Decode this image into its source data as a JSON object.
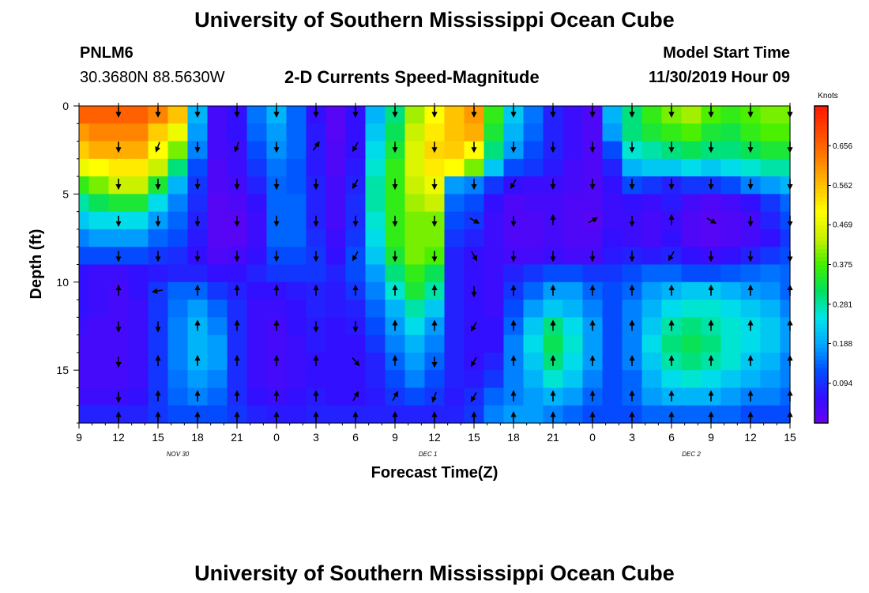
{
  "header": {
    "top_title": "University of Southern Mississippi Ocean Cube",
    "station_id": "PNLM6",
    "station_coords": "30.3680N 88.5630W",
    "plot_title": "2-D Currents Speed-Magnitude",
    "model_label": "Model Start Time",
    "model_time": "11/30/2019 Hour 09",
    "bottom_title": "University of Southern Mississippi Ocean Cube"
  },
  "colors": {
    "colormap": [
      "#6a00f0",
      "#3010ff",
      "#0050ff",
      "#00a8ff",
      "#00e6e6",
      "#00e060",
      "#40f000",
      "#c8f000",
      "#ffff00",
      "#ffc000",
      "#ff8000",
      "#ff4800",
      "#ff1800"
    ]
  },
  "chart_data": {
    "type": "heatmap",
    "title": "2-D Currents Speed-Magnitude",
    "xlabel": "Forecast Time(Z)",
    "ylabel": "Depth (ft)",
    "x_ticks": [
      "9",
      "12",
      "15",
      "18",
      "21",
      "0",
      "3",
      "6",
      "9",
      "12",
      "15",
      "18",
      "21",
      "0",
      "3",
      "6",
      "9",
      "12",
      "15"
    ],
    "x_hours": [
      0,
      3,
      6,
      9,
      12,
      15,
      18,
      21,
      24,
      27,
      30,
      33,
      36,
      39,
      42,
      45,
      48,
      51,
      54
    ],
    "x_range_hours": [
      0,
      54
    ],
    "date_labels": [
      {
        "text": "NOV 30",
        "hour": 7.5
      },
      {
        "text": "DEC 1",
        "hour": 26.5
      },
      {
        "text": "DEC 2",
        "hour": 46.5
      }
    ],
    "y_ticks": [
      0,
      5,
      10,
      15
    ],
    "ylim": [
      0,
      18
    ],
    "y_inverted": true,
    "colorbar": {
      "label": "Knots",
      "ticks": [
        "0.094",
        "0.188",
        "0.281",
        "0.375",
        "0.469",
        "0.562",
        "0.656"
      ],
      "range": [
        0,
        0.75
      ]
    },
    "depths_ft": [
      0.5,
      1.5,
      2.5,
      3.5,
      4.5,
      5.5,
      6.5,
      7.5,
      8.5,
      9.5,
      10.5,
      11.5,
      12.5,
      13.5,
      14.5,
      15.5,
      16.5,
      17.5
    ],
    "times_hr": [
      0,
      1.5,
      3,
      4.5,
      6,
      7.5,
      9,
      10.5,
      12,
      13.5,
      15,
      16.5,
      18,
      19.5,
      21,
      22.5,
      24,
      25.5,
      27,
      28.5,
      30,
      31.5,
      33,
      34.5,
      36,
      37.5,
      39,
      40.5,
      42,
      43.5,
      45,
      46.5,
      48,
      49.5,
      51,
      52.5,
      54
    ],
    "speed_knots": [
      [
        0.66,
        0.66,
        0.66,
        0.66,
        0.62,
        0.56,
        0.2,
        0.04,
        0.06,
        0.15,
        0.2,
        0.14,
        0.06,
        0.02,
        0.06,
        0.2,
        0.3,
        0.42,
        0.5,
        0.56,
        0.6,
        0.36,
        0.22,
        0.15,
        0.08,
        0.05,
        0.03,
        0.2,
        0.3,
        0.36,
        0.4,
        0.42,
        0.38,
        0.36,
        0.38,
        0.4,
        0.4
      ],
      [
        0.6,
        0.62,
        0.62,
        0.62,
        0.55,
        0.48,
        0.18,
        0.04,
        0.06,
        0.14,
        0.18,
        0.14,
        0.07,
        0.02,
        0.06,
        0.22,
        0.32,
        0.44,
        0.52,
        0.56,
        0.58,
        0.34,
        0.2,
        0.14,
        0.08,
        0.05,
        0.03,
        0.18,
        0.3,
        0.34,
        0.36,
        0.38,
        0.34,
        0.33,
        0.36,
        0.38,
        0.38
      ],
      [
        0.55,
        0.58,
        0.58,
        0.58,
        0.5,
        0.4,
        0.16,
        0.04,
        0.05,
        0.12,
        0.17,
        0.14,
        0.07,
        0.03,
        0.06,
        0.24,
        0.34,
        0.46,
        0.54,
        0.55,
        0.5,
        0.3,
        0.18,
        0.12,
        0.08,
        0.05,
        0.03,
        0.12,
        0.26,
        0.28,
        0.3,
        0.32,
        0.3,
        0.3,
        0.32,
        0.34,
        0.34
      ],
      [
        0.48,
        0.5,
        0.52,
        0.52,
        0.44,
        0.3,
        0.12,
        0.03,
        0.05,
        0.1,
        0.15,
        0.13,
        0.07,
        0.03,
        0.07,
        0.26,
        0.36,
        0.46,
        0.52,
        0.5,
        0.4,
        0.22,
        0.12,
        0.1,
        0.07,
        0.04,
        0.03,
        0.08,
        0.2,
        0.22,
        0.22,
        0.24,
        0.22,
        0.24,
        0.26,
        0.28,
        0.28
      ],
      [
        0.36,
        0.4,
        0.44,
        0.44,
        0.34,
        0.2,
        0.1,
        0.03,
        0.04,
        0.08,
        0.14,
        0.13,
        0.08,
        0.04,
        0.08,
        0.28,
        0.36,
        0.44,
        0.48,
        0.18,
        0.16,
        0.1,
        0.06,
        0.05,
        0.05,
        0.04,
        0.03,
        0.06,
        0.12,
        0.1,
        0.08,
        0.1,
        0.1,
        0.12,
        0.16,
        0.18,
        0.2
      ],
      [
        0.28,
        0.32,
        0.34,
        0.34,
        0.24,
        0.16,
        0.09,
        0.02,
        0.03,
        0.06,
        0.14,
        0.14,
        0.08,
        0.04,
        0.09,
        0.28,
        0.36,
        0.42,
        0.44,
        0.14,
        0.12,
        0.06,
        0.03,
        0.04,
        0.04,
        0.03,
        0.03,
        0.05,
        0.06,
        0.05,
        0.07,
        0.04,
        0.03,
        0.04,
        0.06,
        0.1,
        0.14
      ],
      [
        0.22,
        0.24,
        0.24,
        0.24,
        0.18,
        0.14,
        0.08,
        0.02,
        0.02,
        0.05,
        0.14,
        0.14,
        0.08,
        0.04,
        0.09,
        0.26,
        0.36,
        0.4,
        0.4,
        0.12,
        0.1,
        0.05,
        0.03,
        0.03,
        0.04,
        0.03,
        0.02,
        0.05,
        0.05,
        0.04,
        0.05,
        0.03,
        0.02,
        0.03,
        0.04,
        0.08,
        0.12
      ],
      [
        0.16,
        0.18,
        0.18,
        0.18,
        0.14,
        0.12,
        0.07,
        0.02,
        0.02,
        0.05,
        0.14,
        0.14,
        0.09,
        0.05,
        0.1,
        0.24,
        0.36,
        0.4,
        0.4,
        0.1,
        0.08,
        0.05,
        0.03,
        0.03,
        0.04,
        0.03,
        0.03,
        0.06,
        0.05,
        0.04,
        0.06,
        0.03,
        0.02,
        0.03,
        0.04,
        0.06,
        0.1
      ],
      [
        0.12,
        0.12,
        0.12,
        0.12,
        0.1,
        0.09,
        0.06,
        0.03,
        0.04,
        0.06,
        0.12,
        0.12,
        0.1,
        0.06,
        0.12,
        0.22,
        0.34,
        0.4,
        0.38,
        0.08,
        0.06,
        0.05,
        0.04,
        0.04,
        0.05,
        0.04,
        0.04,
        0.07,
        0.08,
        0.07,
        0.08,
        0.06,
        0.05,
        0.06,
        0.08,
        0.1,
        0.12
      ],
      [
        0.06,
        0.05,
        0.05,
        0.06,
        0.07,
        0.08,
        0.08,
        0.06,
        0.06,
        0.08,
        0.1,
        0.1,
        0.1,
        0.08,
        0.12,
        0.18,
        0.3,
        0.36,
        0.32,
        0.08,
        0.06,
        0.05,
        0.08,
        0.1,
        0.12,
        0.12,
        0.1,
        0.1,
        0.12,
        0.14,
        0.14,
        0.12,
        0.12,
        0.13,
        0.14,
        0.15,
        0.14
      ],
      [
        0.06,
        0.05,
        0.04,
        0.06,
        0.1,
        0.14,
        0.14,
        0.1,
        0.08,
        0.06,
        0.06,
        0.07,
        0.08,
        0.07,
        0.1,
        0.16,
        0.26,
        0.34,
        0.28,
        0.08,
        0.06,
        0.05,
        0.1,
        0.14,
        0.18,
        0.18,
        0.14,
        0.12,
        0.14,
        0.18,
        0.2,
        0.22,
        0.22,
        0.2,
        0.18,
        0.17,
        0.14
      ],
      [
        0.06,
        0.05,
        0.04,
        0.05,
        0.1,
        0.15,
        0.18,
        0.14,
        0.09,
        0.05,
        0.05,
        0.06,
        0.08,
        0.07,
        0.08,
        0.14,
        0.2,
        0.28,
        0.22,
        0.08,
        0.06,
        0.05,
        0.12,
        0.18,
        0.22,
        0.2,
        0.16,
        0.12,
        0.16,
        0.2,
        0.24,
        0.26,
        0.26,
        0.24,
        0.22,
        0.2,
        0.16
      ],
      [
        0.05,
        0.04,
        0.04,
        0.05,
        0.1,
        0.16,
        0.2,
        0.16,
        0.09,
        0.05,
        0.04,
        0.06,
        0.07,
        0.06,
        0.07,
        0.12,
        0.18,
        0.24,
        0.18,
        0.08,
        0.06,
        0.06,
        0.14,
        0.22,
        0.3,
        0.24,
        0.18,
        0.12,
        0.16,
        0.22,
        0.28,
        0.3,
        0.28,
        0.26,
        0.24,
        0.22,
        0.18
      ],
      [
        0.04,
        0.04,
        0.04,
        0.05,
        0.1,
        0.16,
        0.2,
        0.18,
        0.09,
        0.05,
        0.04,
        0.05,
        0.07,
        0.06,
        0.06,
        0.1,
        0.16,
        0.2,
        0.16,
        0.08,
        0.06,
        0.06,
        0.16,
        0.24,
        0.32,
        0.26,
        0.18,
        0.12,
        0.16,
        0.24,
        0.3,
        0.32,
        0.3,
        0.26,
        0.24,
        0.22,
        0.18
      ],
      [
        0.04,
        0.04,
        0.04,
        0.05,
        0.1,
        0.16,
        0.2,
        0.18,
        0.09,
        0.05,
        0.04,
        0.05,
        0.06,
        0.06,
        0.06,
        0.08,
        0.14,
        0.18,
        0.14,
        0.08,
        0.06,
        0.08,
        0.16,
        0.22,
        0.3,
        0.24,
        0.18,
        0.12,
        0.16,
        0.22,
        0.28,
        0.3,
        0.28,
        0.26,
        0.22,
        0.2,
        0.16
      ],
      [
        0.04,
        0.04,
        0.04,
        0.05,
        0.1,
        0.15,
        0.18,
        0.16,
        0.09,
        0.05,
        0.04,
        0.05,
        0.06,
        0.06,
        0.06,
        0.08,
        0.12,
        0.16,
        0.12,
        0.08,
        0.07,
        0.1,
        0.16,
        0.2,
        0.26,
        0.22,
        0.16,
        0.12,
        0.14,
        0.2,
        0.24,
        0.26,
        0.24,
        0.22,
        0.2,
        0.18,
        0.16
      ],
      [
        0.05,
        0.05,
        0.05,
        0.06,
        0.1,
        0.14,
        0.16,
        0.14,
        0.09,
        0.06,
        0.05,
        0.06,
        0.07,
        0.06,
        0.06,
        0.07,
        0.1,
        0.12,
        0.1,
        0.07,
        0.09,
        0.14,
        0.16,
        0.18,
        0.2,
        0.18,
        0.14,
        0.12,
        0.14,
        0.18,
        0.2,
        0.2,
        0.2,
        0.18,
        0.16,
        0.16,
        0.14
      ],
      [
        0.08,
        0.08,
        0.08,
        0.08,
        0.1,
        0.12,
        0.12,
        0.12,
        0.1,
        0.08,
        0.07,
        0.07,
        0.08,
        0.08,
        0.08,
        0.08,
        0.08,
        0.08,
        0.08,
        0.08,
        0.1,
        0.16,
        0.18,
        0.18,
        0.16,
        0.14,
        0.12,
        0.12,
        0.12,
        0.14,
        0.14,
        0.14,
        0.14,
        0.14,
        0.12,
        0.12,
        0.12
      ]
    ],
    "vector_depths_ft": [
      0.3,
      2.3,
      4.4,
      6.5,
      8.5,
      10.5,
      12.5,
      14.5,
      16.5,
      17.7
    ],
    "vector_times_hr": [
      3,
      6,
      9,
      12,
      15,
      18,
      21,
      24,
      27,
      30,
      33,
      36,
      39,
      42,
      45,
      48,
      51,
      54
    ],
    "vector_direction_deg": [
      [
        180,
        180,
        180,
        180,
        180,
        180,
        180,
        180,
        180,
        180,
        180,
        180,
        180,
        180,
        180,
        180,
        180,
        180
      ],
      [
        180,
        200,
        180,
        200,
        180,
        35,
        210,
        180,
        180,
        180,
        180,
        180,
        180,
        180,
        180,
        180,
        180,
        180
      ],
      [
        180,
        180,
        180,
        180,
        180,
        180,
        210,
        180,
        180,
        180,
        210,
        180,
        180,
        180,
        180,
        180,
        180,
        180
      ],
      [
        180,
        180,
        180,
        180,
        180,
        180,
        180,
        180,
        180,
        120,
        180,
        0,
        60,
        180,
        0,
        120,
        180,
        180
      ],
      [
        180,
        180,
        180,
        180,
        180,
        180,
        210,
        180,
        180,
        150,
        180,
        180,
        180,
        180,
        210,
        180,
        180,
        180
      ],
      [
        0,
        260,
        0,
        0,
        0,
        0,
        0,
        0,
        0,
        180,
        0,
        0,
        0,
        0,
        0,
        0,
        0,
        0
      ],
      [
        180,
        180,
        0,
        0,
        0,
        180,
        180,
        0,
        0,
        210,
        0,
        0,
        0,
        0,
        0,
        0,
        0,
        0
      ],
      [
        180,
        0,
        0,
        0,
        0,
        0,
        140,
        0,
        180,
        210,
        0,
        0,
        0,
        0,
        0,
        0,
        0,
        0
      ],
      [
        180,
        0,
        0,
        0,
        0,
        0,
        30,
        30,
        200,
        210,
        0,
        0,
        0,
        0,
        0,
        0,
        0,
        0
      ],
      [
        0,
        0,
        0,
        0,
        0,
        0,
        0,
        0,
        0,
        0,
        0,
        0,
        0,
        0,
        0,
        0,
        0,
        0
      ]
    ]
  }
}
